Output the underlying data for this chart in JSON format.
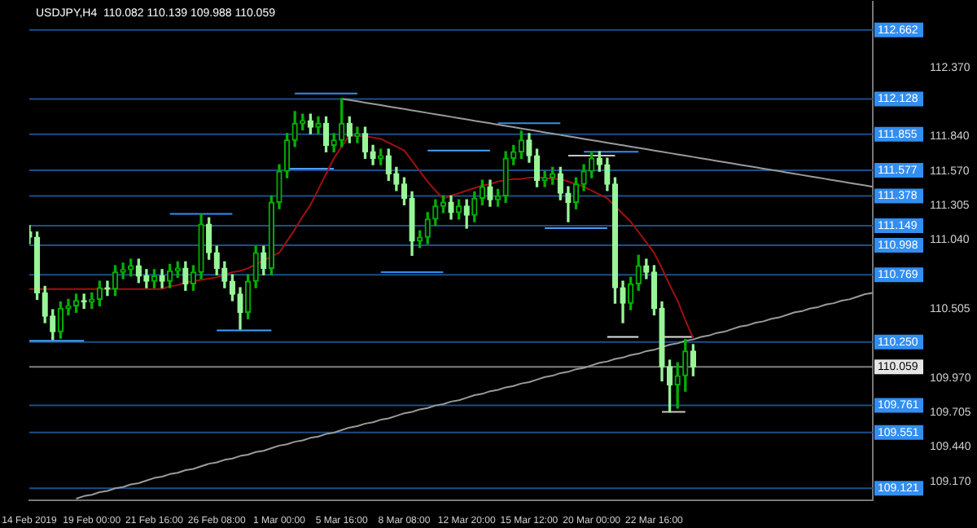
{
  "chart_data": {
    "type": "candlestick",
    "title": "USDJPY,H4  110.082 110.139 109.988 110.059",
    "categories": [
      "14 Feb 2019",
      null,
      null,
      null,
      null,
      null,
      null,
      null,
      "19 Feb 00:00",
      null,
      null,
      null,
      null,
      null,
      null,
      null,
      "21 Feb 16:00",
      null,
      null,
      null,
      null,
      null,
      null,
      null,
      "26 Feb 08:00",
      null,
      null,
      null,
      null,
      null,
      null,
      null,
      "1 Mar 00:00",
      null,
      null,
      null,
      null,
      null,
      null,
      null,
      "5 Mar 16:00",
      null,
      null,
      null,
      null,
      null,
      null,
      null,
      "8 Mar 08:00",
      null,
      null,
      null,
      null,
      null,
      null,
      null,
      "12 Mar 20:00",
      null,
      null,
      null,
      null,
      null,
      null,
      null,
      "15 Mar 12:00",
      null,
      null,
      null,
      null,
      null,
      null,
      null,
      "20 Mar 00:00",
      null,
      null,
      null,
      null,
      null,
      null,
      null,
      "22 Mar 16:00",
      null,
      null,
      null,
      null,
      null,
      null,
      null,
      null,
      null,
      null,
      null,
      null,
      null,
      null,
      null,
      null,
      null,
      null,
      null,
      null,
      null,
      null,
      null,
      null,
      null,
      null,
      null,
      null
    ],
    "ohlc": [
      [
        111.1,
        111.15,
        111.01,
        111.06
      ],
      [
        111.06,
        111.1,
        110.58,
        110.63
      ],
      [
        110.63,
        110.68,
        110.4,
        110.45
      ],
      [
        110.45,
        110.5,
        110.27,
        110.33
      ],
      [
        110.33,
        110.56,
        110.28,
        110.51
      ],
      [
        110.51,
        110.58,
        110.46,
        110.53
      ],
      [
        110.53,
        110.62,
        110.48,
        110.57
      ],
      [
        110.57,
        110.62,
        110.51,
        110.56
      ],
      [
        110.56,
        110.63,
        110.51,
        110.58
      ],
      [
        110.58,
        110.72,
        110.53,
        110.67
      ],
      [
        110.67,
        110.72,
        110.61,
        110.66
      ],
      [
        110.66,
        110.84,
        110.61,
        110.79
      ],
      [
        110.79,
        110.86,
        110.74,
        110.81
      ],
      [
        110.81,
        110.89,
        110.76,
        110.84
      ],
      [
        110.84,
        110.89,
        110.71,
        110.76
      ],
      [
        110.76,
        110.81,
        110.67,
        110.72
      ],
      [
        110.72,
        110.81,
        110.67,
        110.76
      ],
      [
        110.76,
        110.81,
        110.67,
        110.72
      ],
      [
        110.72,
        110.85,
        110.67,
        110.8
      ],
      [
        110.8,
        110.87,
        110.75,
        110.82
      ],
      [
        110.82,
        110.87,
        110.65,
        110.7
      ],
      [
        110.7,
        110.84,
        110.65,
        110.79
      ],
      [
        110.79,
        111.24,
        110.74,
        111.16
      ],
      [
        111.16,
        111.21,
        110.89,
        110.94
      ],
      [
        110.94,
        110.99,
        110.77,
        110.82
      ],
      [
        110.82,
        110.87,
        110.67,
        110.72
      ],
      [
        110.72,
        110.77,
        110.57,
        110.62
      ],
      [
        110.62,
        110.67,
        110.35,
        110.48
      ],
      [
        110.48,
        110.77,
        110.43,
        110.72
      ],
      [
        110.72,
        110.99,
        110.67,
        110.94
      ],
      [
        110.94,
        110.99,
        110.77,
        110.82
      ],
      [
        110.82,
        111.38,
        110.77,
        111.33
      ],
      [
        111.33,
        111.62,
        111.28,
        111.57
      ],
      [
        111.57,
        111.86,
        111.52,
        111.81
      ],
      [
        111.81,
        112.03,
        111.76,
        111.94
      ],
      [
        111.94,
        112.01,
        111.89,
        111.96
      ],
      [
        111.96,
        112.01,
        111.86,
        111.91
      ],
      [
        111.91,
        111.99,
        111.86,
        111.94
      ],
      [
        111.94,
        111.99,
        111.72,
        111.77
      ],
      [
        111.77,
        111.86,
        111.72,
        111.81
      ],
      [
        111.81,
        112.13,
        111.76,
        111.94
      ],
      [
        111.94,
        111.99,
        111.79,
        111.84
      ],
      [
        111.84,
        111.91,
        111.79,
        111.86
      ],
      [
        111.86,
        111.91,
        111.67,
        111.72
      ],
      [
        111.72,
        111.77,
        111.62,
        111.67
      ],
      [
        111.67,
        111.74,
        111.62,
        111.69
      ],
      [
        111.69,
        111.74,
        111.5,
        111.55
      ],
      [
        111.55,
        111.6,
        111.42,
        111.47
      ],
      [
        111.47,
        111.52,
        111.31,
        111.36
      ],
      [
        111.36,
        111.41,
        110.92,
        111.03
      ],
      [
        111.03,
        111.11,
        110.98,
        111.06
      ],
      [
        111.06,
        111.25,
        111.01,
        111.2
      ],
      [
        111.2,
        111.35,
        111.15,
        111.3
      ],
      [
        111.3,
        111.38,
        111.25,
        111.33
      ],
      [
        111.33,
        111.38,
        111.2,
        111.25
      ],
      [
        111.25,
        111.35,
        111.2,
        111.3
      ],
      [
        111.3,
        111.35,
        111.13,
        111.23
      ],
      [
        111.23,
        111.41,
        111.18,
        111.36
      ],
      [
        111.36,
        111.5,
        111.31,
        111.45
      ],
      [
        111.45,
        111.5,
        111.3,
        111.35
      ],
      [
        111.35,
        111.43,
        111.3,
        111.38
      ],
      [
        111.38,
        111.72,
        111.33,
        111.67
      ],
      [
        111.67,
        111.77,
        111.62,
        111.72
      ],
      [
        111.72,
        111.88,
        111.67,
        111.81
      ],
      [
        111.81,
        111.86,
        111.64,
        111.69
      ],
      [
        111.69,
        111.74,
        111.45,
        111.5
      ],
      [
        111.5,
        111.57,
        111.45,
        111.52
      ],
      [
        111.52,
        111.6,
        111.47,
        111.55
      ],
      [
        111.55,
        111.6,
        111.35,
        111.4
      ],
      [
        111.4,
        111.45,
        111.18,
        111.33
      ],
      [
        111.33,
        111.52,
        111.28,
        111.47
      ],
      [
        111.47,
        111.62,
        111.42,
        111.57
      ],
      [
        111.57,
        111.72,
        111.52,
        111.67
      ],
      [
        111.67,
        111.72,
        111.57,
        111.62
      ],
      [
        111.62,
        111.67,
        111.42,
        111.47
      ],
      [
        111.47,
        111.52,
        110.55,
        110.67
      ],
      [
        110.67,
        110.72,
        110.4,
        110.55
      ],
      [
        110.55,
        110.75,
        110.5,
        110.7
      ],
      [
        110.7,
        110.92,
        110.65,
        110.84
      ],
      [
        110.84,
        110.89,
        110.74,
        110.79
      ],
      [
        110.79,
        110.84,
        110.46,
        110.51
      ],
      [
        110.51,
        110.56,
        109.95,
        110.06
      ],
      [
        110.06,
        110.11,
        109.71,
        109.92
      ],
      [
        109.92,
        110.09,
        109.74,
        109.99
      ],
      [
        109.99,
        110.27,
        109.87,
        110.18
      ],
      [
        110.18,
        110.23,
        109.99,
        110.06
      ],
      null,
      null,
      null,
      null,
      null,
      null,
      null,
      null,
      null,
      null,
      null,
      null,
      null,
      null,
      null,
      null,
      null,
      null,
      null,
      null,
      null,
      null,
      null
    ],
    "series": [
      {
        "type": "line",
        "color": "#a01010",
        "values": [
          110.66,
          110.66,
          110.66,
          110.66,
          110.66,
          110.66,
          110.66,
          110.66,
          110.66,
          110.66,
          110.66,
          110.66,
          110.66,
          110.66,
          110.66,
          110.66,
          110.66,
          110.66,
          110.68,
          110.69,
          110.71,
          110.72,
          110.73,
          110.74,
          110.75,
          110.77,
          110.79,
          110.8,
          110.82,
          110.85,
          110.88,
          110.91,
          110.94,
          111.03,
          111.12,
          111.22,
          111.31,
          111.43,
          111.55,
          111.67,
          111.76,
          111.85,
          111.84,
          111.84,
          111.83,
          111.82,
          111.79,
          111.76,
          111.73,
          111.65,
          111.57,
          111.49,
          111.42,
          111.36,
          111.38,
          111.4,
          111.42,
          111.44,
          111.46,
          111.47,
          111.49,
          111.5,
          111.51,
          111.51,
          111.52,
          111.52,
          111.52,
          111.51,
          111.51,
          111.49,
          111.47,
          111.45,
          111.42,
          111.39,
          111.36,
          111.3,
          111.24,
          111.18,
          111.1,
          111.02,
          110.94,
          110.82,
          110.69,
          110.57,
          110.42,
          110.28,
          null,
          null,
          null,
          null,
          null,
          null,
          null,
          null,
          null,
          null,
          null,
          null,
          null,
          null,
          null,
          null,
          null,
          null,
          null,
          null,
          null,
          null,
          null
        ]
      },
      {
        "type": "line",
        "color": "#9a9a9a",
        "values": [
          null,
          null,
          null,
          null,
          null,
          null,
          null,
          null,
          null,
          null,
          null,
          null,
          null,
          null,
          null,
          null,
          null,
          null,
          null,
          null,
          null,
          null,
          null,
          null,
          null,
          null,
          null,
          null,
          null,
          null,
          null,
          null,
          null,
          null,
          null,
          null,
          null,
          null,
          null,
          null,
          112.13,
          112.12,
          112.11,
          112.1,
          112.09,
          112.08,
          112.07,
          112.06,
          112.05,
          112.04,
          112.03,
          112.02,
          112.01,
          112.0,
          111.99,
          111.98,
          111.97,
          111.96,
          111.95,
          111.94,
          111.93,
          111.92,
          111.91,
          111.9,
          111.89,
          111.88,
          111.87,
          111.86,
          111.85,
          111.84,
          111.83,
          111.82,
          111.81,
          111.8,
          111.79,
          111.78,
          111.77,
          111.76,
          111.75,
          111.74,
          111.73,
          111.72,
          111.71,
          111.7,
          111.69,
          111.68,
          111.67,
          111.66,
          111.65,
          111.64,
          111.63,
          111.62,
          111.61,
          111.6,
          111.59,
          111.58,
          111.57,
          111.56,
          111.55,
          111.54,
          111.53,
          111.52,
          111.51,
          111.5,
          111.49,
          111.48,
          111.47,
          111.46,
          111.45
        ]
      },
      {
        "type": "line",
        "color": "#9a9a9a",
        "values": [
          null,
          null,
          null,
          null,
          null,
          null,
          109.04,
          109.06,
          109.07,
          109.09,
          109.1,
          109.12,
          109.13,
          109.15,
          109.16,
          109.18,
          109.2,
          109.21,
          109.23,
          109.24,
          109.26,
          109.27,
          109.29,
          109.31,
          109.32,
          109.34,
          109.35,
          109.37,
          109.38,
          109.4,
          109.41,
          109.43,
          109.45,
          109.46,
          109.48,
          109.49,
          109.51,
          109.52,
          109.54,
          109.55,
          109.57,
          109.59,
          109.6,
          109.62,
          109.63,
          109.65,
          109.66,
          109.68,
          109.7,
          109.71,
          109.73,
          109.74,
          109.76,
          109.77,
          109.79,
          109.8,
          109.82,
          109.84,
          109.85,
          109.87,
          109.88,
          109.9,
          109.91,
          109.93,
          109.94,
          109.96,
          109.98,
          109.99,
          110.01,
          110.02,
          110.04,
          110.05,
          110.07,
          110.09,
          110.1,
          110.12,
          110.13,
          110.15,
          110.16,
          110.18,
          110.19,
          110.21,
          110.23,
          110.24,
          110.26,
          110.27,
          110.29,
          110.3,
          110.32,
          110.33,
          110.35,
          110.37,
          110.38,
          110.4,
          110.41,
          110.43,
          110.44,
          110.46,
          110.48,
          110.49,
          110.51,
          110.52,
          110.54,
          110.55,
          110.57,
          110.58,
          110.6,
          110.62,
          110.63
        ]
      },
      {
        "type": "line",
        "color": "#2f8fef",
        "values": [
          null,
          null,
          null,
          null,
          null,
          null,
          null,
          null,
          null,
          null,
          null,
          null,
          null,
          null,
          null,
          null,
          null,
          null,
          111.24,
          111.24,
          111.24,
          111.24,
          111.24,
          111.24,
          111.24,
          111.24,
          111.24,
          null,
          null,
          null,
          null,
          null,
          null,
          null,
          112.17,
          112.17,
          112.17,
          112.17,
          112.17,
          112.17,
          112.17,
          112.17,
          112.17,
          null,
          null,
          110.79,
          110.79,
          110.79,
          110.79,
          110.79,
          110.79,
          110.79,
          110.79,
          110.79,
          null,
          null,
          null,
          null,
          null,
          null,
          111.94,
          111.94,
          111.94,
          111.94,
          111.94,
          111.94,
          111.94,
          111.94,
          111.94,
          null,
          null,
          111.72,
          111.72,
          111.72,
          111.72,
          111.72,
          111.72,
          111.72,
          111.72,
          null,
          null,
          null,
          null,
          null,
          null,
          null,
          null,
          null,
          null,
          null,
          null,
          null,
          null,
          null,
          null,
          null,
          null,
          null,
          null,
          null,
          null,
          null,
          null,
          null,
          null,
          null,
          null,
          null,
          null
        ]
      },
      {
        "type": "line",
        "color": "#4a9ff5",
        "values": [
          110.26,
          110.26,
          110.26,
          110.26,
          110.26,
          110.26,
          110.26,
          110.26,
          null,
          null,
          null,
          null,
          null,
          null,
          null,
          null,
          null,
          null,
          null,
          null,
          null,
          null,
          null,
          null,
          110.34,
          110.34,
          110.34,
          110.34,
          110.34,
          110.34,
          110.34,
          110.34,
          null,
          111.59,
          111.59,
          111.59,
          111.59,
          111.59,
          111.59,
          111.59,
          null,
          null,
          null,
          null,
          null,
          null,
          null,
          null,
          null,
          null,
          null,
          111.73,
          111.73,
          111.73,
          111.73,
          111.73,
          111.73,
          111.73,
          111.73,
          111.73,
          null,
          null,
          null,
          null,
          null,
          null,
          111.13,
          111.13,
          111.13,
          111.13,
          111.13,
          111.13,
          111.13,
          111.13,
          111.13,
          null,
          null,
          null,
          null,
          null,
          null,
          null,
          null,
          null,
          null,
          null,
          null,
          null,
          null,
          null,
          null,
          null,
          null,
          null,
          null,
          null,
          null,
          null,
          null,
          null,
          null,
          null,
          null,
          null,
          null,
          null,
          null,
          null,
          null
        ]
      },
      {
        "type": "line",
        "color": "#e0e0e0",
        "values": [
          null,
          null,
          null,
          null,
          null,
          null,
          null,
          null,
          null,
          null,
          null,
          null,
          null,
          null,
          null,
          null,
          null,
          null,
          null,
          null,
          null,
          null,
          null,
          null,
          null,
          null,
          null,
          null,
          null,
          null,
          null,
          null,
          null,
          null,
          null,
          null,
          null,
          null,
          null,
          null,
          null,
          null,
          null,
          null,
          null,
          null,
          null,
          null,
          null,
          null,
          null,
          null,
          null,
          null,
          null,
          null,
          null,
          null,
          null,
          null,
          null,
          null,
          null,
          null,
          null,
          null,
          null,
          null,
          null,
          null,
          null,
          null,
          null,
          null,
          110.29,
          110.29,
          110.29,
          110.29,
          110.29,
          null,
          null,
          110.29,
          110.29,
          110.29,
          110.29,
          110.29,
          null,
          null,
          null,
          null,
          null,
          null,
          null,
          null,
          null,
          null,
          null,
          null,
          null,
          null,
          null,
          null,
          null,
          null,
          null,
          null,
          null,
          null,
          null
        ]
      },
      {
        "type": "line",
        "color": "#c8c8c8",
        "values": [
          null,
          null,
          null,
          null,
          null,
          null,
          null,
          null,
          null,
          null,
          null,
          null,
          null,
          null,
          null,
          null,
          null,
          null,
          null,
          null,
          null,
          null,
          null,
          null,
          null,
          null,
          null,
          null,
          null,
          null,
          null,
          null,
          null,
          null,
          null,
          null,
          null,
          null,
          null,
          null,
          null,
          null,
          null,
          null,
          null,
          null,
          null,
          null,
          null,
          null,
          null,
          null,
          null,
          null,
          null,
          null,
          null,
          null,
          null,
          null,
          null,
          null,
          null,
          null,
          null,
          null,
          null,
          null,
          null,
          111.69,
          111.69,
          111.69,
          111.69,
          111.69,
          111.69,
          111.69,
          null,
          null,
          null,
          null,
          null,
          109.71,
          109.71,
          109.71,
          109.71,
          null,
          null,
          null,
          null,
          null,
          null,
          null,
          null,
          null,
          null,
          null,
          null,
          null,
          null,
          null,
          null,
          null,
          null,
          null,
          null,
          null,
          null,
          null,
          null
        ]
      }
    ],
    "ylim": [
      109.03,
      112.88
    ],
    "yticks": [
      {
        "value": 112.37,
        "label": "112.370"
      },
      {
        "value": 111.84,
        "label": "111.840"
      },
      {
        "value": 111.57,
        "label": "111.570"
      },
      {
        "value": 111.305,
        "label": "111.305"
      },
      {
        "value": 111.04,
        "label": "111.040"
      },
      {
        "value": 110.505,
        "label": "110.505"
      },
      {
        "value": 109.97,
        "label": "109.970"
      },
      {
        "value": 109.705,
        "label": "109.705"
      },
      {
        "value": 109.44,
        "label": "109.440"
      },
      {
        "value": 109.17,
        "label": "109.170"
      }
    ],
    "ref_lines": [
      {
        "axis": "y",
        "value": 112.662,
        "label": "112.662",
        "color": "#1c4f86"
      },
      {
        "axis": "y",
        "value": 112.128,
        "label": "112.128",
        "color": "#1c4f86"
      },
      {
        "axis": "y",
        "value": 111.855,
        "label": "111.855",
        "color": "#1c4f86"
      },
      {
        "axis": "y",
        "value": 111.577,
        "label": "111.577",
        "color": "#1c4f86"
      },
      {
        "axis": "y",
        "value": 111.378,
        "label": "111.378",
        "color": "#1c4f86"
      },
      {
        "axis": "y",
        "value": 111.149,
        "label": "111.149",
        "color": "#1c4f86"
      },
      {
        "axis": "y",
        "value": 110.998,
        "label": "110.998",
        "color": "#1c4f86"
      },
      {
        "axis": "y",
        "value": 110.769,
        "label": "110.769",
        "color": "#1c4f86"
      },
      {
        "axis": "y",
        "value": 110.25,
        "label": "110.250",
        "color": "#1c4f86"
      },
      {
        "axis": "y",
        "value": 110.059,
        "label": "110.059",
        "color": "#808080"
      },
      {
        "axis": "y",
        "value": 109.761,
        "label": "109.761",
        "color": "#1c4f86"
      },
      {
        "axis": "y",
        "value": 109.551,
        "label": "109.551",
        "color": "#1c4f86"
      },
      {
        "axis": "y",
        "value": 109.121,
        "label": "109.121",
        "color": "#1c4f86"
      }
    ],
    "grid": false,
    "legend": false
  }
}
